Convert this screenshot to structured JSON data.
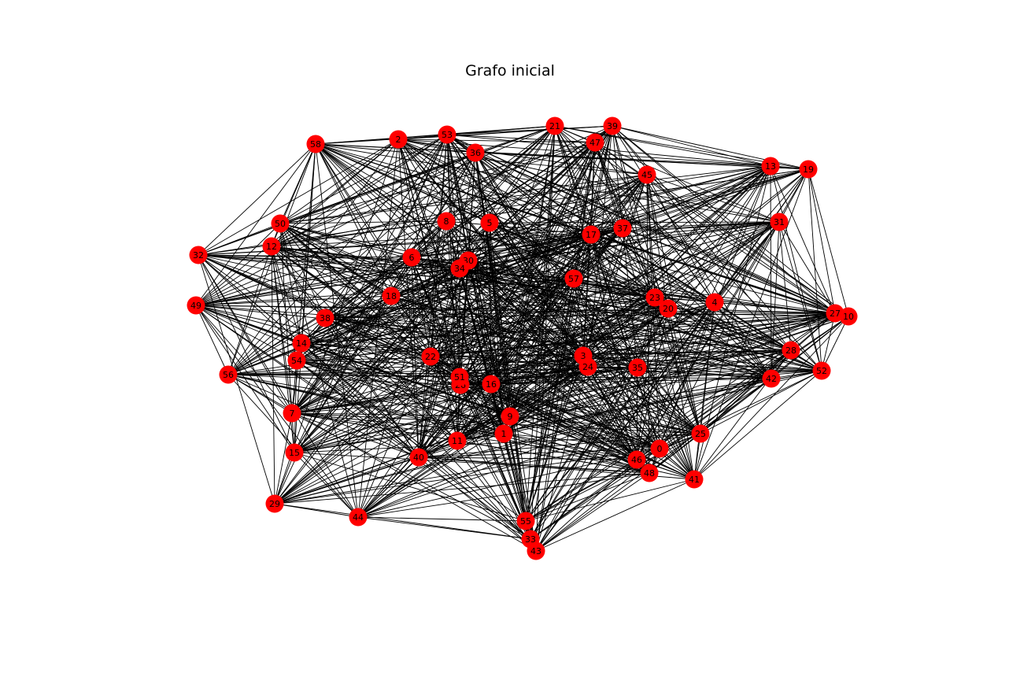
{
  "title": "Grafo inicial",
  "colors": {
    "node": "#ff0000",
    "edge": "#000000",
    "background": "#ffffff",
    "label": "#000000"
  },
  "nodes": [
    "0",
    "1",
    "2",
    "3",
    "4",
    "5",
    "6",
    "7",
    "8",
    "9",
    "10",
    "11",
    "12",
    "13",
    "14",
    "15",
    "16",
    "17",
    "18",
    "19",
    "20",
    "21",
    "22",
    "23",
    "24",
    "25",
    "26",
    "27",
    "28",
    "29",
    "30",
    "31",
    "32",
    "33",
    "34",
    "35",
    "36",
    "37",
    "38",
    "39",
    "40",
    "41",
    "42",
    "43",
    "44",
    "45",
    "46",
    "47",
    "48",
    "49",
    "50",
    "51",
    "52",
    "53",
    "54",
    "55",
    "56",
    "57",
    "58"
  ],
  "edges_note": ""
}
